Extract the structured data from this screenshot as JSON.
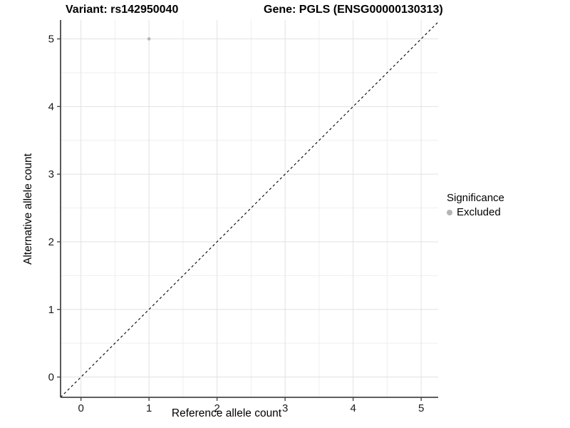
{
  "chart_data": {
    "type": "scatter",
    "title_left": "Variant: rs142950040",
    "title_right": "Gene: PGLS (ENSG00000130313)",
    "xlabel": "Reference allele count",
    "ylabel": "Alternative allele count",
    "xlim": [
      -0.3,
      5.25
    ],
    "ylim": [
      -0.3,
      5.28
    ],
    "xticks": [
      0,
      1,
      2,
      3,
      4,
      5
    ],
    "yticks": [
      0,
      1,
      2,
      3,
      4,
      5
    ],
    "grid": "major+minor",
    "minor_step": 0.5,
    "points": [
      {
        "x": 1,
        "y": 5,
        "series": "Excluded"
      }
    ],
    "abline": {
      "slope": 1,
      "intercept": 0,
      "style": "dashed"
    },
    "legend_position": "right",
    "legend": {
      "title": "Significance",
      "items": [
        {
          "label": "Excluded",
          "color": "#b5b5b5"
        }
      ]
    },
    "style": {
      "point_color": "#b5b5b5",
      "point_radius": 2.3,
      "abline_color": "#000000",
      "grid_major_color": "#e2e2e2",
      "grid_minor_color": "#efefef",
      "axis_line_color": "#474747",
      "tick_color": "#474747",
      "tick_label_color": "#1a1a1a",
      "background": "#ffffff"
    }
  }
}
